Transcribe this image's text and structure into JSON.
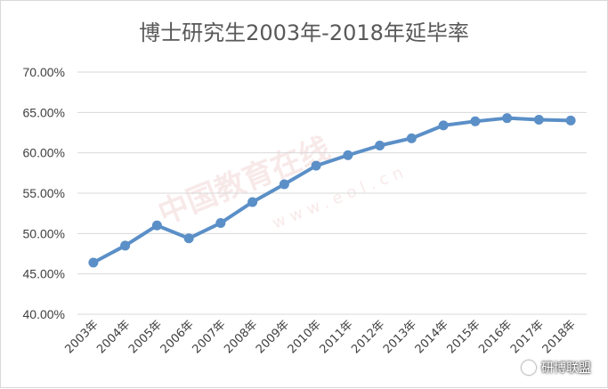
{
  "chart_data": {
    "type": "line",
    "title": "博士研究生2003年-2018年延毕率",
    "categories": [
      "2003年",
      "2004年",
      "2005年",
      "2006年",
      "2007年",
      "2008年",
      "2009年",
      "2010年",
      "2011年",
      "2012年",
      "2013年",
      "2014年",
      "2015年",
      "2016年",
      "2017年",
      "2018年"
    ],
    "series": [
      {
        "values": [
          46.4,
          48.5,
          51.0,
          49.4,
          51.3,
          53.9,
          56.1,
          58.4,
          59.7,
          60.9,
          61.8,
          63.4,
          63.9,
          64.3,
          64.1,
          64.0
        ]
      }
    ],
    "yticks": [
      "40.00%",
      "45.00%",
      "50.00%",
      "55.00%",
      "60.00%",
      "65.00%",
      "70.00%"
    ],
    "ylim": [
      40,
      70
    ],
    "grid": true,
    "legend": "none",
    "series_color": "#5b8fc7"
  },
  "watermark": {
    "text": "中国教育在线",
    "url": "www.eol.cn"
  },
  "signature": {
    "text": "研博联盟"
  }
}
